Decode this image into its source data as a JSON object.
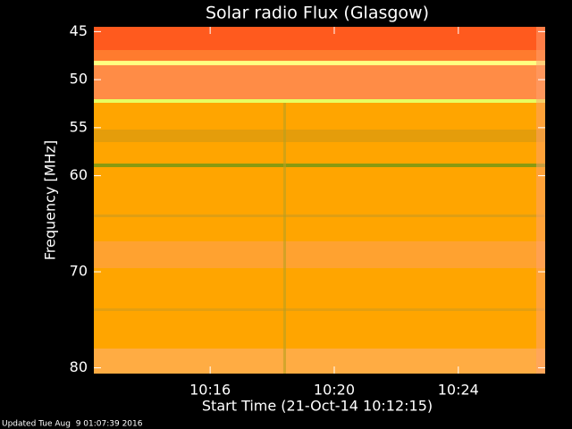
{
  "chart_data": {
    "type": "spectrogram",
    "title": "Solar radio Flux (Glasgow)",
    "x_label": "Start Time (21-Oct-14 10:12:15)",
    "y_label": "Frequency [MHz]",
    "xlim": [
      36735,
      37608
    ],
    "xticks": [
      {
        "value": 36960,
        "label": "10:16"
      },
      {
        "value": 37200,
        "label": "10:20"
      },
      {
        "value": 37440,
        "label": "10:24"
      }
    ],
    "ylim": [
      80.6,
      44.5
    ],
    "yticks": [
      45,
      50,
      55,
      60,
      70,
      80
    ],
    "footer": "Updated Tue Aug  9 01:07:39 2016"
  }
}
